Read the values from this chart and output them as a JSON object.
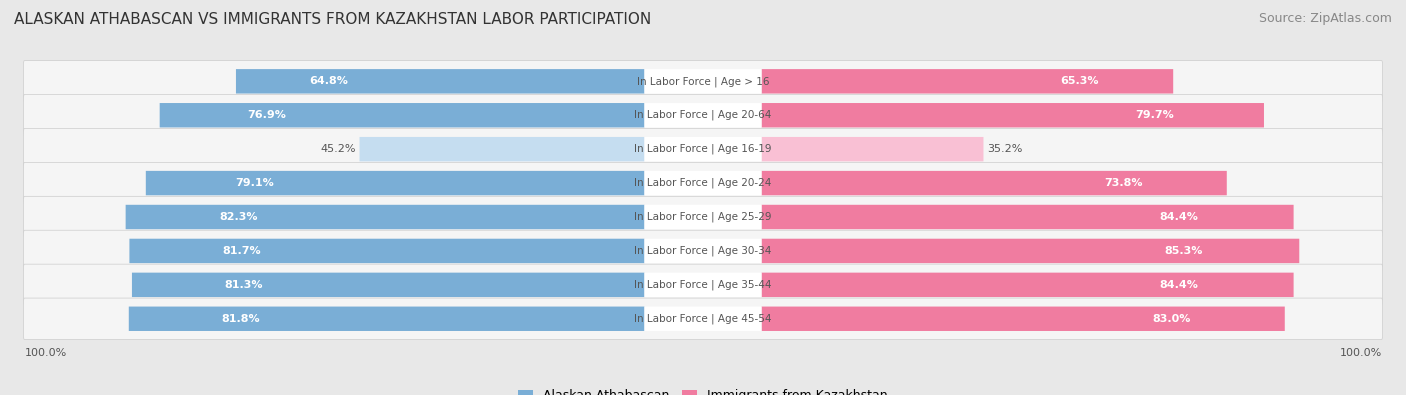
{
  "title": "ALASKAN ATHABASCAN VS IMMIGRANTS FROM KAZAKHSTAN LABOR PARTICIPATION",
  "source": "Source: ZipAtlas.com",
  "categories": [
    "In Labor Force | Age > 16",
    "In Labor Force | Age 20-64",
    "In Labor Force | Age 16-19",
    "In Labor Force | Age 20-24",
    "In Labor Force | Age 25-29",
    "In Labor Force | Age 30-34",
    "In Labor Force | Age 35-44",
    "In Labor Force | Age 45-54"
  ],
  "left_values": [
    64.8,
    76.9,
    45.2,
    79.1,
    82.3,
    81.7,
    81.3,
    81.8
  ],
  "right_values": [
    65.3,
    79.7,
    35.2,
    73.8,
    84.4,
    85.3,
    84.4,
    83.0
  ],
  "left_color": "#7aaed6",
  "right_color": "#f07ca0",
  "left_color_light": "#c5ddf0",
  "right_color_light": "#f9c0d4",
  "left_label": "Alaskan Athabascan",
  "right_label": "Immigrants from Kazakhstan",
  "bg_color": "#e8e8e8",
  "row_bg_color": "#f5f5f5",
  "max_value": 100.0,
  "title_fontsize": 11,
  "source_fontsize": 9,
  "value_fontsize": 8,
  "label_fontsize": 7.5,
  "legend_fontsize": 9
}
